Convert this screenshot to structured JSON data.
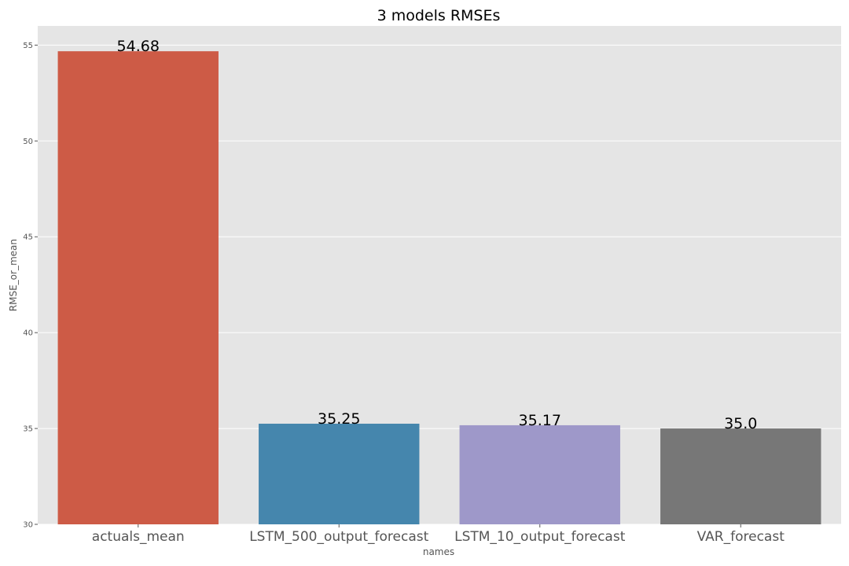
{
  "chart_data": {
    "type": "bar",
    "title": "3 models RMSEs",
    "xlabel": "names",
    "ylabel": "RMSE_or_mean",
    "categories": [
      "actuals_mean",
      "LSTM_500_output_forecast",
      "LSTM_10_output_forecast",
      "VAR_forecast"
    ],
    "values": [
      54.68,
      35.25,
      35.17,
      35.0
    ],
    "value_labels": [
      "54.68",
      "35.25",
      "35.17",
      "35.0"
    ],
    "colors": [
      "#cd5b46",
      "#4586ad",
      "#9e98c9",
      "#777777"
    ],
    "ylim": [
      30,
      56
    ],
    "yticks": [
      30,
      35,
      40,
      45,
      50,
      55
    ],
    "grid": true,
    "background": "#e5e5e5",
    "grid_color": "#ffffff"
  }
}
